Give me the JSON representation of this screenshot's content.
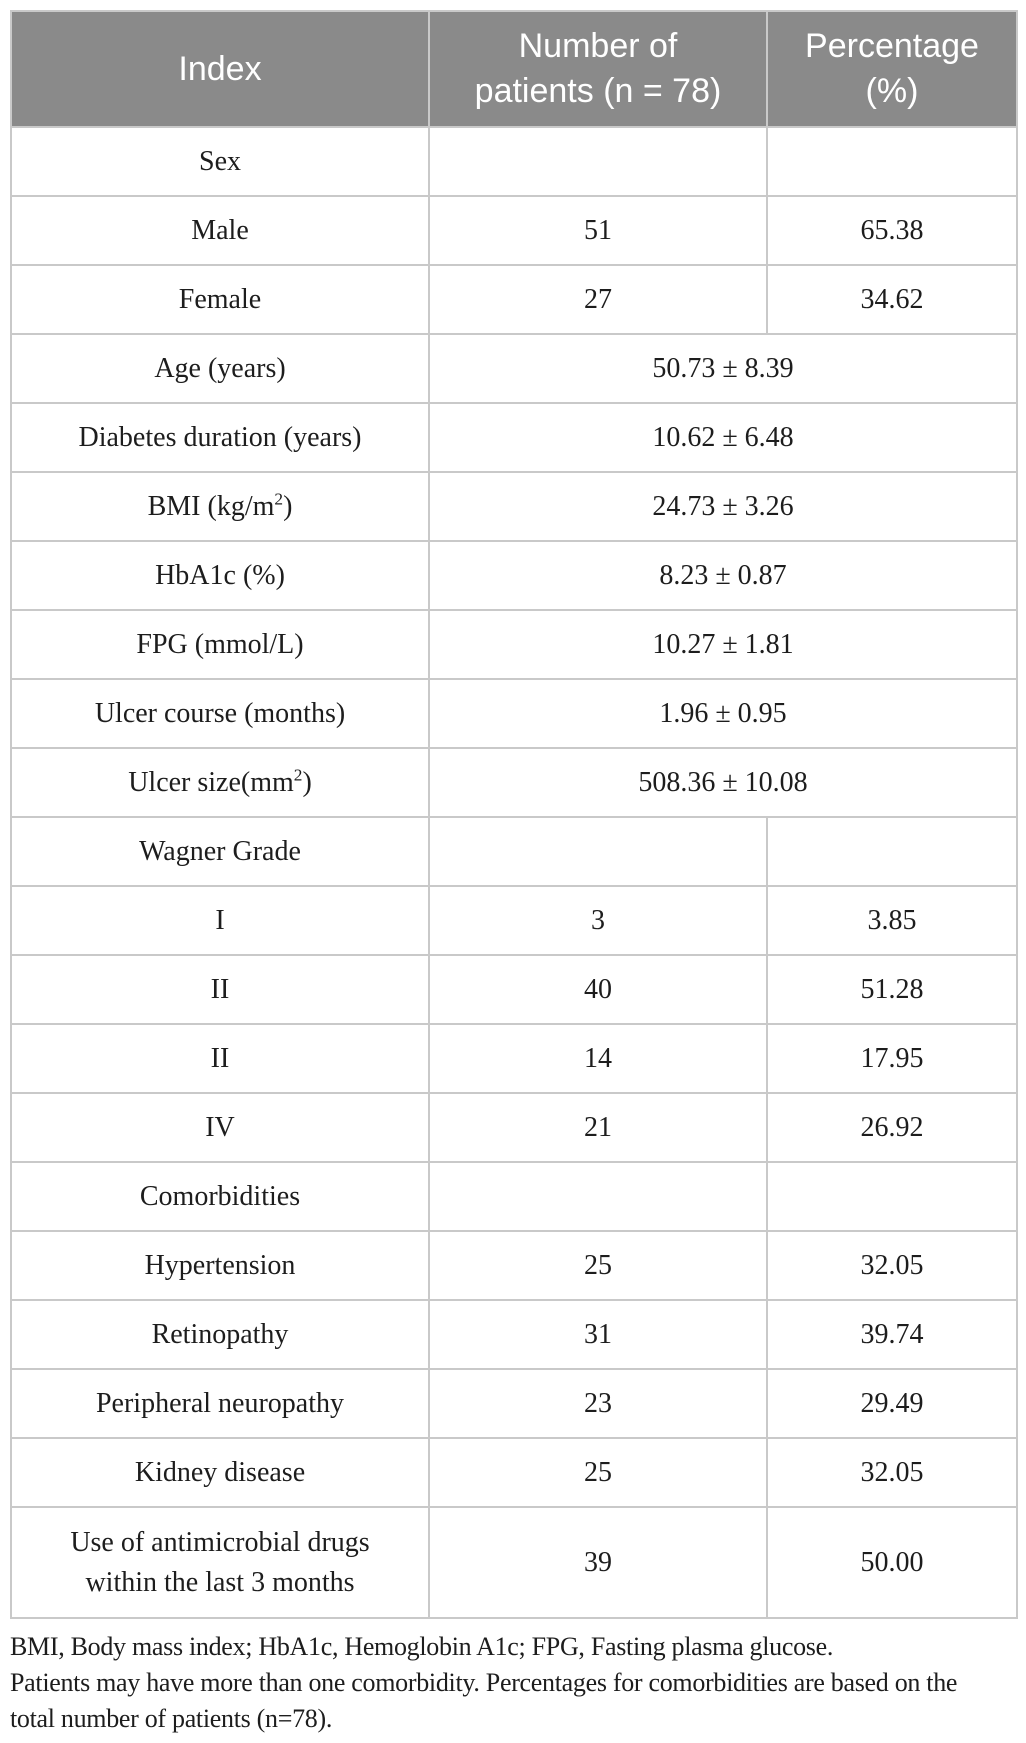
{
  "colors": {
    "header_bg": "#8a8a8a",
    "header_text": "#ffffff",
    "border": "#c9c9c9",
    "body_text": "#1d1d1d"
  },
  "table": {
    "header": {
      "index": "Index",
      "patients_line1": "Number of",
      "patients_line2": "patients (n = 78)",
      "percentage_line1": "Percentage",
      "percentage_line2": "(%)"
    },
    "rows": [
      {
        "type": "section",
        "label": "Sex"
      },
      {
        "type": "data",
        "label": "Male",
        "n": "51",
        "pct": "65.38"
      },
      {
        "type": "data",
        "label": "Female",
        "n": "27",
        "pct": "34.62"
      },
      {
        "type": "merged",
        "label": "Age (years)",
        "value": "50.73 ± 8.39"
      },
      {
        "type": "merged",
        "label": "Diabetes duration (years)",
        "value": "10.62 ± 6.48"
      },
      {
        "type": "merged",
        "label_pre": "BMI (kg/m",
        "label_sup": "2",
        "label_post": ")",
        "value": "24.73 ± 3.26"
      },
      {
        "type": "merged",
        "label": "HbA1c (%)",
        "value": "8.23 ± 0.87"
      },
      {
        "type": "merged",
        "label": "FPG (mmol/L)",
        "value": "10.27 ± 1.81"
      },
      {
        "type": "merged",
        "label": "Ulcer course (months)",
        "value": "1.96 ± 0.95"
      },
      {
        "type": "merged",
        "label_pre": "Ulcer size(mm",
        "label_sup": "2",
        "label_post": ")",
        "value": "508.36 ± 10.08"
      },
      {
        "type": "section",
        "label": "Wagner Grade"
      },
      {
        "type": "data",
        "label": "I",
        "n": "3",
        "pct": "3.85"
      },
      {
        "type": "data",
        "label": "II",
        "n": "40",
        "pct": "51.28"
      },
      {
        "type": "data",
        "label": "II",
        "n": "14",
        "pct": "17.95"
      },
      {
        "type": "data",
        "label": "IV",
        "n": "21",
        "pct": "26.92"
      },
      {
        "type": "section",
        "label": "Comorbidities"
      },
      {
        "type": "data",
        "label": "Hypertension",
        "n": "25",
        "pct": "32.05"
      },
      {
        "type": "data",
        "label": "Retinopathy",
        "n": "31",
        "pct": "39.74"
      },
      {
        "type": "data",
        "label": "Peripheral neuropathy",
        "n": "23",
        "pct": "29.49"
      },
      {
        "type": "data",
        "label": "Kidney disease",
        "n": "25",
        "pct": "32.05"
      },
      {
        "type": "data",
        "label_line1": "Use of antimicrobial drugs",
        "label_line2": "within the last 3 months",
        "n": "39",
        "pct": "50.00"
      }
    ]
  },
  "footnotes": {
    "lines": [
      "BMI, Body mass index; HbA1c, Hemoglobin A1c; FPG, Fasting plasma glucose.",
      "Patients may have more than one comorbidity. Percentages for comorbidities are based on the",
      "total number of patients (n=78)."
    ]
  }
}
